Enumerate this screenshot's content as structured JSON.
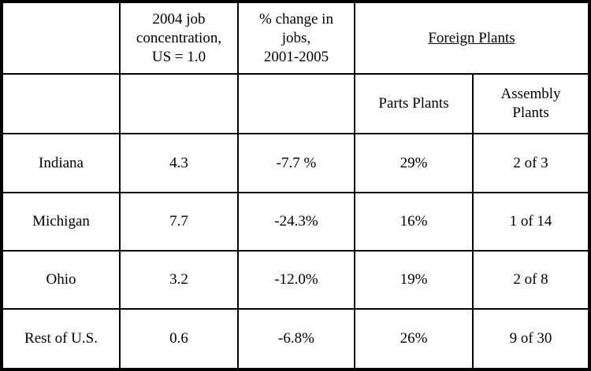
{
  "headers": {
    "col1": "",
    "col2": "2004 job\nconcentration,\nUS = 1.0",
    "col3": "% change in\njobs,\n2001-2005",
    "group": "Foreign Plants",
    "sub_parts": "Parts Plants",
    "sub_assembly": "Assembly\nPlants"
  },
  "rows": [
    {
      "state": "Indiana",
      "concentration": "4.3",
      "change": "-7.7 %",
      "parts": "29%",
      "assembly": "2 of 3"
    },
    {
      "state": "Michigan",
      "concentration": "7.7",
      "change": "-24.3%",
      "parts": "16%",
      "assembly": "1 of 14"
    },
    {
      "state": "Ohio",
      "concentration": "3.2",
      "change": "-12.0%",
      "parts": "19%",
      "assembly": "2 of 8"
    },
    {
      "state": "Rest of U.S.",
      "concentration": "0.6",
      "change": "-6.8%",
      "parts": "26%",
      "assembly": "9 of 30"
    }
  ]
}
